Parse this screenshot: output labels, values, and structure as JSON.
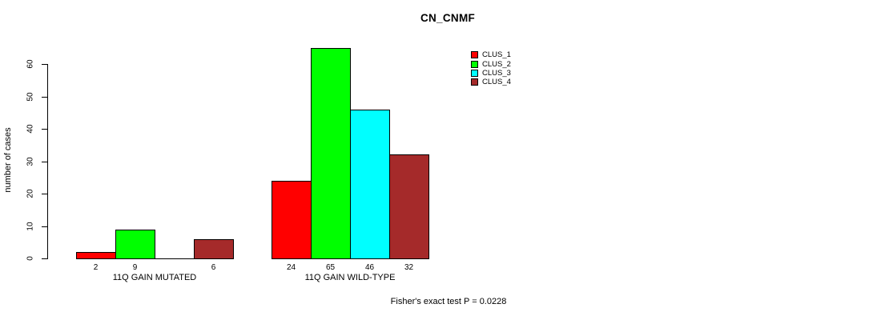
{
  "figure": {
    "title": "CN_CNMF",
    "ylabel": "number of cases",
    "footer": "Fisher's exact test P = 0.0228"
  },
  "legend": {
    "position": "top-right",
    "items": [
      {
        "label": "CLUS_1",
        "color": "#FF0000"
      },
      {
        "label": "CLUS_2",
        "color": "#00FF00"
      },
      {
        "label": "CLUS_3",
        "color": "#00FFFF"
      },
      {
        "label": "CLUS_4",
        "color": "#A52A2A"
      }
    ]
  },
  "chart_data": {
    "type": "bar",
    "title": "CN_CNMF",
    "xlabel": "",
    "ylabel": "number of cases",
    "ylim": [
      0,
      65
    ],
    "yticks": [
      0,
      10,
      20,
      30,
      40,
      50,
      60
    ],
    "grid": false,
    "legend_position": "top-right",
    "categories": [
      "11Q GAIN MUTATED",
      "11Q GAIN WILD-TYPE"
    ],
    "series": [
      {
        "name": "CLUS_1",
        "color": "#FF0000",
        "values": [
          2,
          24
        ]
      },
      {
        "name": "CLUS_2",
        "color": "#00FF00",
        "values": [
          9,
          65
        ]
      },
      {
        "name": "CLUS_3",
        "color": "#00FFFF",
        "values": [
          0,
          46
        ]
      },
      {
        "name": "CLUS_4",
        "color": "#A52A2A",
        "values": [
          6,
          32
        ]
      }
    ],
    "bar_value_labels": [
      [
        "2",
        "9",
        "",
        "6"
      ],
      [
        "24",
        "65",
        "46",
        "32"
      ]
    ],
    "annotation": "Fisher's exact test P = 0.0228"
  }
}
